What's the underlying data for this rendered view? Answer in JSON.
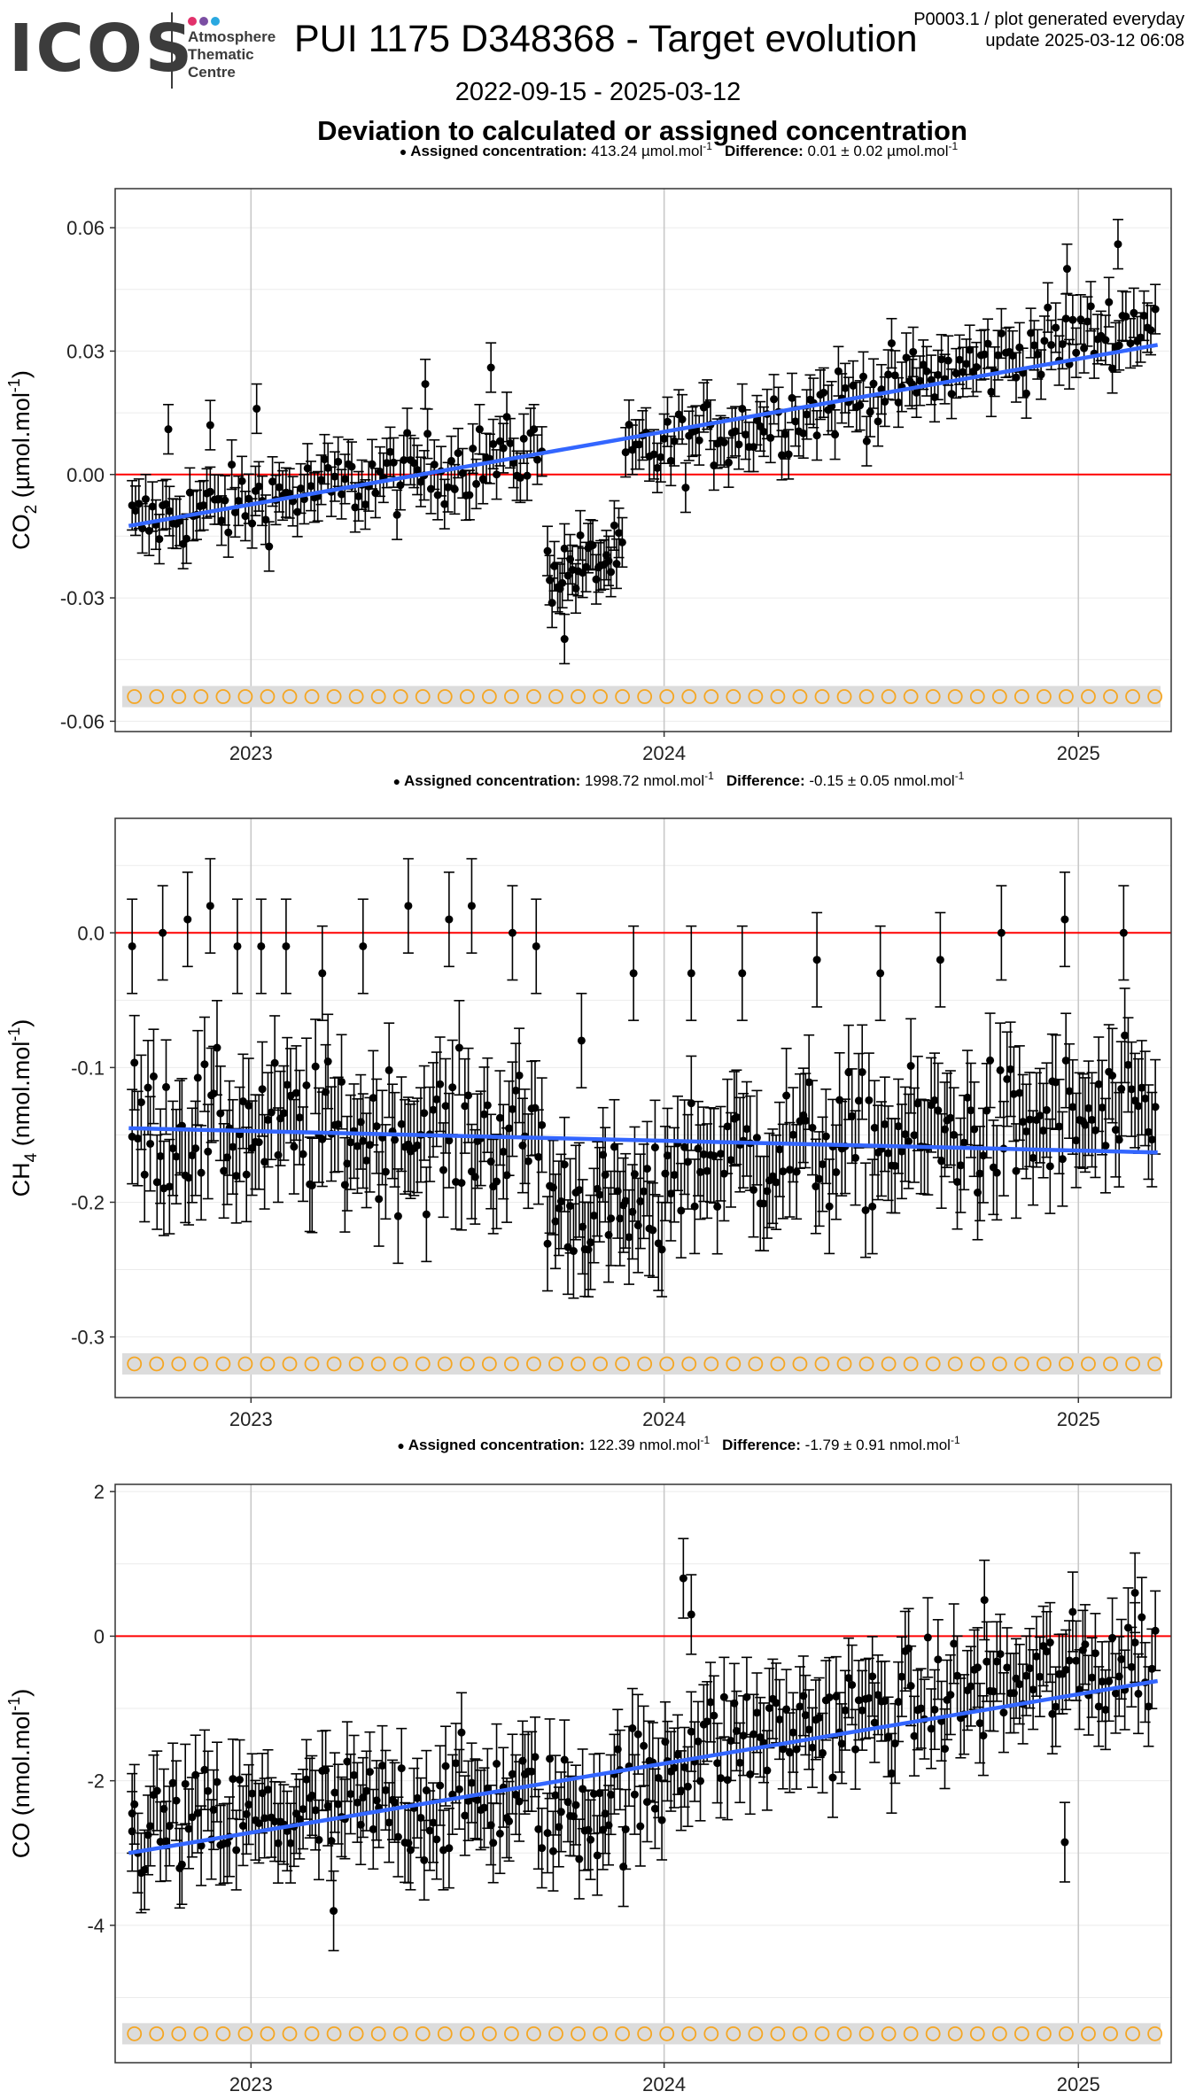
{
  "logo": {
    "word": "ICOS",
    "lines": [
      "Atmosphere",
      "Thematic",
      "Centre"
    ],
    "dot_colors": [
      "#e2316b",
      "#7b4ea3",
      "#2aa8e0"
    ]
  },
  "header": {
    "title": "PUI 1175 D348368 - Target evolution",
    "meta_line1": "P0003.1 / plot generated everyday",
    "meta_line2": "update  2025-03-12 06:08",
    "date_range": "2022-09-15 - 2025-03-12",
    "heading": "Deviation to calculated or assigned concentration"
  },
  "colors": {
    "points": "#000000",
    "trend": "#3366ff",
    "zero_line": "#ff0000",
    "marker": "#f5a623",
    "marker_band": "#dcdcdc",
    "gridline": "#ebebeb",
    "year_gridline": "#c8c8c8"
  },
  "chart_data": [
    {
      "type": "scatter",
      "panel": "co2",
      "legend": {
        "assigned_label": "Assigned concentration:",
        "assigned_value": "413.24",
        "diff_label": "Difference:",
        "diff_value": "0.01",
        "diff_uncertainty": "0.02",
        "unit": "µmol.mol",
        "unit_sup": "-1"
      },
      "ylabel": {
        "species": "CO",
        "sub": "2",
        "unit": "(µmol.mol",
        "sup": "-1",
        "close": ")"
      },
      "xlim": [
        "2022-09-15",
        "2025-03-12"
      ],
      "ylim": [
        -0.0625,
        0.0695
      ],
      "y_ticks": [
        0.06,
        0.03,
        0.0,
        -0.03,
        -0.06
      ],
      "y_tick_labels": [
        "0.06",
        "0.03",
        "0.00",
        "-0.03",
        "-0.06"
      ],
      "x_ticks": [
        "2023-01-01",
        "2024-01-01",
        "2025-01-01"
      ],
      "x_tick_labels": [
        "2023",
        "2024",
        "2025"
      ],
      "zero_line": 0,
      "trend": {
        "start": [
          "2022-09-15",
          -0.0125
        ],
        "end": [
          "2025-03-12",
          0.0315
        ]
      },
      "marker_row_y": -0.054,
      "error_bar": 0.006,
      "segments": [
        {
          "from": "2022-09-18",
          "to": "2023-09-15",
          "y_start": -0.012,
          "y_end": 0.006,
          "spread": 0.008,
          "n": 120
        },
        {
          "from": "2023-09-20",
          "to": "2023-11-25",
          "y_start": -0.024,
          "y_end": -0.02,
          "spread": 0.007,
          "n": 30
        },
        {
          "from": "2023-11-28",
          "to": "2025-03-10",
          "y_start": 0.004,
          "y_end": 0.038,
          "spread": 0.008,
          "n": 150
        }
      ],
      "outliers": [
        {
          "x": "2022-10-20",
          "y": 0.011
        },
        {
          "x": "2022-11-26",
          "y": 0.012
        },
        {
          "x": "2023-01-06",
          "y": 0.016
        },
        {
          "x": "2023-06-04",
          "y": 0.022
        },
        {
          "x": "2023-08-01",
          "y": 0.026
        },
        {
          "x": "2023-10-05",
          "y": -0.04
        },
        {
          "x": "2024-08-07",
          "y": 0.022
        },
        {
          "x": "2024-12-22",
          "y": 0.05
        },
        {
          "x": "2025-02-05",
          "y": 0.056
        }
      ]
    },
    {
      "type": "scatter",
      "panel": "ch4",
      "legend": {
        "assigned_label": "Assigned concentration:",
        "assigned_value": "1998.72",
        "diff_label": "Difference:",
        "diff_value": "-0.15",
        "diff_uncertainty": "0.05",
        "unit": "nmol.mol",
        "unit_sup": "-1"
      },
      "ylabel": {
        "species": "CH",
        "sub": "4",
        "unit": "(nmol.mol",
        "sup": "-1",
        "close": ")"
      },
      "xlim": [
        "2022-09-15",
        "2025-03-12"
      ],
      "ylim": [
        -0.345,
        0.085
      ],
      "y_ticks": [
        0.0,
        -0.1,
        -0.2,
        -0.3
      ],
      "y_tick_labels": [
        "0.0",
        "-0.1",
        "-0.2",
        "-0.3"
      ],
      "x_ticks": [
        "2023-01-01",
        "2024-01-01",
        "2025-01-01"
      ],
      "x_tick_labels": [
        "2023",
        "2024",
        "2025"
      ],
      "zero_line": 0,
      "trend": {
        "start": [
          "2022-09-15",
          -0.145
        ],
        "end": [
          "2025-03-12",
          -0.163
        ]
      },
      "marker_row_y": -0.32,
      "error_bar": 0.035,
      "segments": [
        {
          "from": "2022-09-18",
          "to": "2023-09-15",
          "y_start": -0.145,
          "y_end": -0.15,
          "spread": 0.045,
          "n": 130
        },
        {
          "from": "2023-09-20",
          "to": "2023-12-30",
          "y_start": -0.2,
          "y_end": -0.21,
          "spread": 0.04,
          "n": 40
        },
        {
          "from": "2024-01-02",
          "to": "2025-03-10",
          "y_start": -0.17,
          "y_end": -0.135,
          "spread": 0.045,
          "n": 150
        }
      ],
      "outliers": [
        {
          "x": "2022-09-18",
          "y": -0.01
        },
        {
          "x": "2022-10-15",
          "y": 0.0
        },
        {
          "x": "2022-11-06",
          "y": 0.01
        },
        {
          "x": "2022-11-26",
          "y": 0.02
        },
        {
          "x": "2022-12-20",
          "y": -0.01
        },
        {
          "x": "2023-01-10",
          "y": -0.01
        },
        {
          "x": "2023-02-01",
          "y": -0.01
        },
        {
          "x": "2023-03-05",
          "y": -0.03
        },
        {
          "x": "2023-04-10",
          "y": -0.01
        },
        {
          "x": "2023-05-20",
          "y": 0.02
        },
        {
          "x": "2023-06-25",
          "y": 0.01
        },
        {
          "x": "2023-07-15",
          "y": 0.02
        },
        {
          "x": "2023-08-20",
          "y": 0.0
        },
        {
          "x": "2023-09-10",
          "y": -0.01
        },
        {
          "x": "2023-10-20",
          "y": -0.08
        },
        {
          "x": "2023-12-05",
          "y": -0.03
        },
        {
          "x": "2024-01-25",
          "y": -0.03
        },
        {
          "x": "2024-03-10",
          "y": -0.03
        },
        {
          "x": "2024-05-15",
          "y": -0.02
        },
        {
          "x": "2024-07-10",
          "y": -0.03
        },
        {
          "x": "2024-09-01",
          "y": -0.02
        },
        {
          "x": "2024-10-25",
          "y": 0.0
        },
        {
          "x": "2024-12-20",
          "y": 0.01
        },
        {
          "x": "2025-02-10",
          "y": 0.0
        }
      ]
    },
    {
      "type": "scatter",
      "panel": "co",
      "legend": {
        "assigned_label": "Assigned concentration:",
        "assigned_value": "122.39",
        "diff_label": "Difference:",
        "diff_value": "-1.79",
        "diff_uncertainty": "0.91",
        "unit": "nmol.mol",
        "unit_sup": "-1"
      },
      "ylabel": {
        "species": "CO",
        "sub": "",
        "unit": "(nmol.mol",
        "sup": "-1",
        "close": ")"
      },
      "xlim": [
        "2022-09-15",
        "2025-03-12"
      ],
      "ylim": [
        -5.9,
        2.1
      ],
      "y_ticks": [
        2,
        0,
        -2,
        -4
      ],
      "y_tick_labels": [
        "2",
        "0",
        "-2",
        "-4"
      ],
      "x_ticks": [
        "2023-01-01",
        "2024-01-01",
        "2025-01-01"
      ],
      "x_tick_labels": [
        "2023",
        "2024",
        "2025"
      ],
      "zero_line": 0,
      "trend": {
        "start": [
          "2022-09-15",
          -3.0
        ],
        "end": [
          "2025-03-12",
          -0.62
        ]
      },
      "marker_row_y": -5.5,
      "error_bar": 0.55,
      "segments": [
        {
          "from": "2022-09-18",
          "to": "2023-09-15",
          "y_start": -2.7,
          "y_end": -2.2,
          "spread": 0.7,
          "n": 130
        },
        {
          "from": "2023-09-20",
          "to": "2023-12-30",
          "y_start": -2.5,
          "y_end": -2.0,
          "spread": 0.8,
          "n": 40
        },
        {
          "from": "2024-01-02",
          "to": "2025-03-10",
          "y_start": -1.6,
          "y_end": -0.3,
          "spread": 0.7,
          "n": 150
        }
      ],
      "outliers": [
        {
          "x": "2022-09-18",
          "y": -2.7
        },
        {
          "x": "2023-03-15",
          "y": -3.8
        },
        {
          "x": "2024-01-18",
          "y": 0.8
        },
        {
          "x": "2024-01-25",
          "y": 0.3
        },
        {
          "x": "2024-12-20",
          "y": -2.85
        },
        {
          "x": "2024-10-10",
          "y": 0.5
        },
        {
          "x": "2025-02-20",
          "y": 0.6
        }
      ]
    }
  ]
}
